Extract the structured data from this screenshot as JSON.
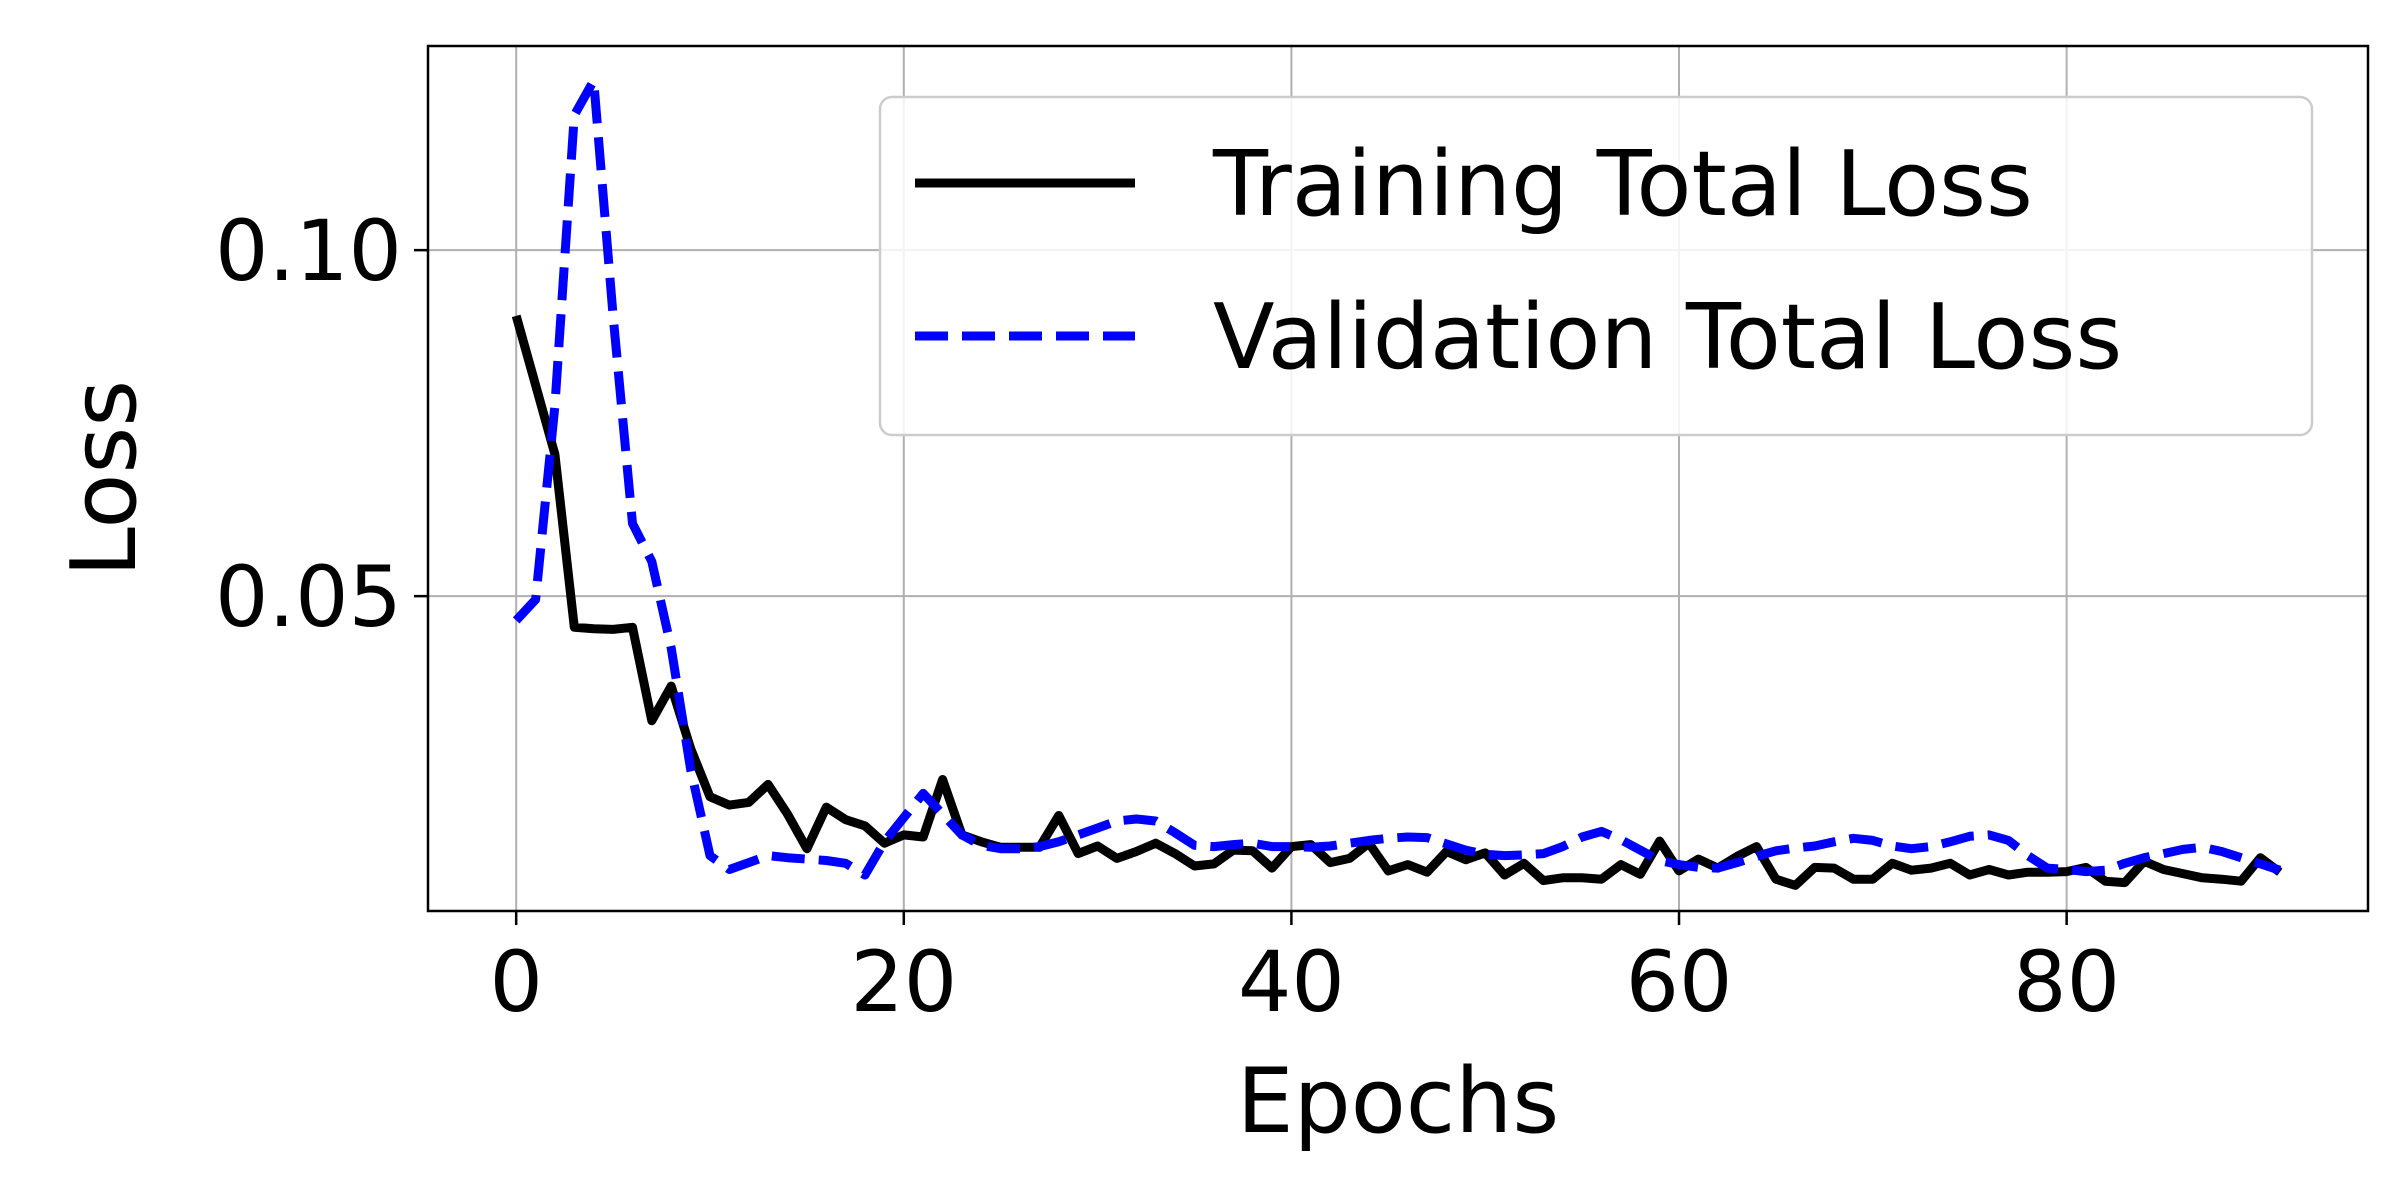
{
  "chart_data": {
    "type": "line",
    "title": "",
    "xlabel": "Epochs",
    "ylabel": "Loss",
    "xlim": [
      -4.55,
      95.55
    ],
    "ylim": [
      0.0045,
      0.1295
    ],
    "xticks": [
      0,
      20,
      40,
      60,
      80
    ],
    "xtick_labels": [
      "0",
      "20",
      "40",
      "60",
      "80"
    ],
    "yticks": [
      0.05,
      0.1
    ],
    "ytick_labels": [
      "0.05",
      "0.10"
    ],
    "grid": true,
    "legend_position": "top-right",
    "series": [
      {
        "name": "Training Total Loss",
        "color": "#000000",
        "style": "solid",
        "x": [
          0,
          1,
          2,
          3,
          4,
          5,
          6,
          7,
          8,
          9,
          10,
          11,
          12,
          13,
          14,
          15,
          16,
          17,
          18,
          19,
          20,
          21,
          22,
          23,
          24,
          25,
          26,
          27,
          28,
          29,
          30,
          31,
          32,
          33,
          34,
          35,
          36,
          37,
          38,
          39,
          40,
          41,
          42,
          43,
          44,
          45,
          46,
          47,
          48,
          49,
          50,
          51,
          52,
          53,
          54,
          55,
          56,
          57,
          58,
          59,
          60,
          61,
          62,
          63,
          64,
          65,
          66,
          67,
          68,
          69,
          70,
          71,
          72,
          73,
          74,
          75,
          76,
          77,
          78,
          79,
          80,
          81,
          82,
          83,
          84,
          85,
          86,
          87,
          88,
          89,
          90,
          91
        ],
        "y": [
          0.0905,
          0.0805,
          0.0705,
          0.0455,
          0.0453,
          0.0452,
          0.0455,
          0.032,
          0.037,
          0.028,
          0.021,
          0.0198,
          0.0202,
          0.0228,
          0.0185,
          0.0135,
          0.0195,
          0.0177,
          0.0168,
          0.0143,
          0.0155,
          0.0152,
          0.0235,
          0.0155,
          0.0145,
          0.0137,
          0.0137,
          0.0137,
          0.0183,
          0.0128,
          0.0139,
          0.0121,
          0.0131,
          0.0143,
          0.0128,
          0.011,
          0.0113,
          0.0133,
          0.0132,
          0.0107,
          0.0138,
          0.0141,
          0.0115,
          0.0121,
          0.0143,
          0.0103,
          0.0112,
          0.0101,
          0.0131,
          0.0119,
          0.0129,
          0.0097,
          0.0114,
          0.0089,
          0.0093,
          0.0093,
          0.0091,
          0.0112,
          0.0098,
          0.0146,
          0.0103,
          0.012,
          0.0107,
          0.0124,
          0.0138,
          0.0091,
          0.0082,
          0.0108,
          0.0107,
          0.0091,
          0.0091,
          0.0114,
          0.0104,
          0.0107,
          0.0114,
          0.0097,
          0.0105,
          0.0097,
          0.0101,
          0.0101,
          0.0102,
          0.0108,
          0.0088,
          0.0086,
          0.0117,
          0.0105,
          0.0099,
          0.0093,
          0.0091,
          0.0088,
          0.0122,
          0.0101
        ]
      },
      {
        "name": "Validation Total Loss",
        "color": "#0000ff",
        "style": "dashed",
        "x": [
          0,
          1,
          2,
          3,
          4,
          5,
          6,
          7,
          8,
          9,
          10,
          11,
          12,
          13,
          14,
          15,
          16,
          17,
          18,
          19,
          20,
          21,
          22,
          23,
          24,
          25,
          26,
          27,
          28,
          29,
          30,
          31,
          32,
          33,
          34,
          35,
          36,
          37,
          38,
          39,
          40,
          41,
          42,
          43,
          44,
          45,
          46,
          47,
          48,
          49,
          50,
          51,
          52,
          53,
          54,
          55,
          56,
          57,
          58,
          59,
          60,
          61,
          62,
          63,
          64,
          65,
          66,
          67,
          68,
          69,
          70,
          71,
          72,
          73,
          74,
          75,
          76,
          77,
          78,
          79,
          80,
          81,
          82,
          83,
          84,
          85,
          86,
          87,
          88,
          89,
          90,
          91
        ],
        "y": [
          0.0465,
          0.0495,
          0.0775,
          0.1195,
          0.1245,
          0.0905,
          0.0605,
          0.055,
          0.0425,
          0.025,
          0.0125,
          0.0105,
          0.0115,
          0.0125,
          0.0122,
          0.012,
          0.0118,
          0.0114,
          0.0097,
          0.0145,
          0.018,
          0.0215,
          0.0185,
          0.0155,
          0.014,
          0.0135,
          0.0135,
          0.0138,
          0.0145,
          0.0155,
          0.0165,
          0.0175,
          0.0178,
          0.0175,
          0.0158,
          0.014,
          0.0138,
          0.0141,
          0.0143,
          0.0138,
          0.0138,
          0.0137,
          0.0139,
          0.0143,
          0.0147,
          0.015,
          0.0152,
          0.0151,
          0.0142,
          0.0133,
          0.0127,
          0.0125,
          0.0126,
          0.0128,
          0.0138,
          0.0152,
          0.016,
          0.0148,
          0.0133,
          0.0118,
          0.0112,
          0.0108,
          0.0107,
          0.0115,
          0.0124,
          0.0132,
          0.0136,
          0.0139,
          0.0145,
          0.015,
          0.0147,
          0.0139,
          0.0135,
          0.0138,
          0.0145,
          0.0153,
          0.0155,
          0.0147,
          0.0125,
          0.0107,
          0.0105,
          0.0102,
          0.0104,
          0.0114,
          0.0122,
          0.0128,
          0.0134,
          0.0137,
          0.0131,
          0.0122,
          0.0113,
          0.0104
        ]
      }
    ]
  }
}
